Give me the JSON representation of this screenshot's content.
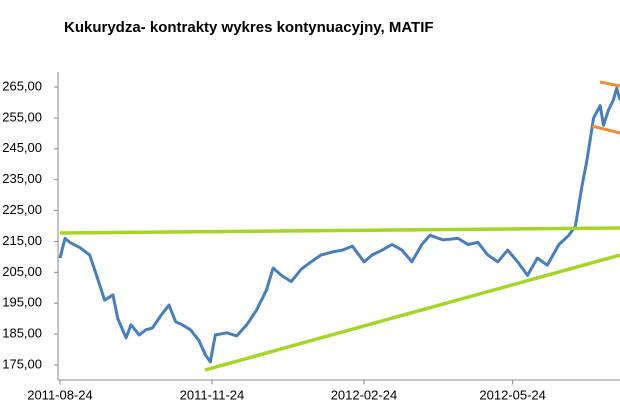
{
  "chart_data": {
    "type": "line",
    "title": "Kukurydza- kontrakty wykres kontynuacyjny, MATIF",
    "x": [
      "2011-08-24",
      "2011-08-27",
      "2011-08-30",
      "2011-09-05",
      "2011-09-11",
      "2011-09-14",
      "2011-09-17",
      "2011-09-20",
      "2011-09-25",
      "2011-09-28",
      "2011-10-03",
      "2011-10-06",
      "2011-10-11",
      "2011-10-15",
      "2011-10-19",
      "2011-10-24",
      "2011-10-29",
      "2011-11-02",
      "2011-11-06",
      "2011-11-11",
      "2011-11-16",
      "2011-11-20",
      "2011-11-23",
      "2011-11-26",
      "2011-12-03",
      "2011-12-09",
      "2011-12-15",
      "2011-12-21",
      "2011-12-27",
      "2011-12-31",
      "2012-01-05",
      "2012-01-11",
      "2012-01-17",
      "2012-01-23",
      "2012-01-29",
      "2012-02-05",
      "2012-02-11",
      "2012-02-17",
      "2012-02-24",
      "2012-02-29",
      "2012-03-06",
      "2012-03-12",
      "2012-03-18",
      "2012-03-24",
      "2012-03-30",
      "2012-04-04",
      "2012-04-12",
      "2012-04-21",
      "2012-04-27",
      "2012-05-03",
      "2012-05-09",
      "2012-05-15",
      "2012-05-21",
      "2012-05-27",
      "2012-06-02",
      "2012-06-08",
      "2012-06-14",
      "2012-06-21",
      "2012-06-27",
      "2012-07-01",
      "2012-07-05",
      "2012-07-08",
      "2012-07-12",
      "2012-07-16",
      "2012-07-18",
      "2012-07-21",
      "2012-07-24",
      "2012-07-26",
      "2012-07-28"
    ],
    "series": [
      {
        "color": "#4a7ebb",
        "values": [
          209.6,
          216,
          214.7,
          213,
          210.6,
          205.8,
          201,
          196,
          197.7,
          190,
          183.8,
          188,
          184.7,
          186.4,
          187,
          191,
          194.4,
          189,
          188,
          186.4,
          183,
          178.3,
          176,
          184.7,
          185.4,
          184.4,
          188,
          192.8,
          199.3,
          206.4,
          204,
          202,
          206,
          208.4,
          210.6,
          211.6,
          212.2,
          213.5,
          208.4,
          210.6,
          212.2,
          214,
          212.2,
          208.4,
          214,
          217,
          215.5,
          216,
          214,
          214.7,
          210.6,
          208.4,
          212.2,
          208.4,
          204,
          209.6,
          207.3,
          214,
          217,
          220,
          233,
          241.4,
          255,
          259,
          252.6,
          257.5,
          260.8,
          264.7,
          260.8
        ]
      }
    ],
    "xlim": [
      "2011-08-24",
      "2012-07-28"
    ],
    "xticks": [
      "2011-08-24",
      "2011-11-24",
      "2012-02-24",
      "2012-05-24"
    ],
    "ylim": [
      170,
      270
    ],
    "yticks": [
      {
        "value": 175,
        "label": "175,00"
      },
      {
        "value": 185,
        "label": "185,00"
      },
      {
        "value": 195,
        "label": "195,00"
      },
      {
        "value": 205,
        "label": "205,00"
      },
      {
        "value": 215,
        "label": "215,00"
      },
      {
        "value": 225,
        "label": "225,00"
      },
      {
        "value": 235,
        "label": "235,00"
      },
      {
        "value": 245,
        "label": "245,00"
      },
      {
        "value": 255,
        "label": "255,00"
      },
      {
        "value": 265,
        "label": "265,00"
      }
    ]
  }
}
